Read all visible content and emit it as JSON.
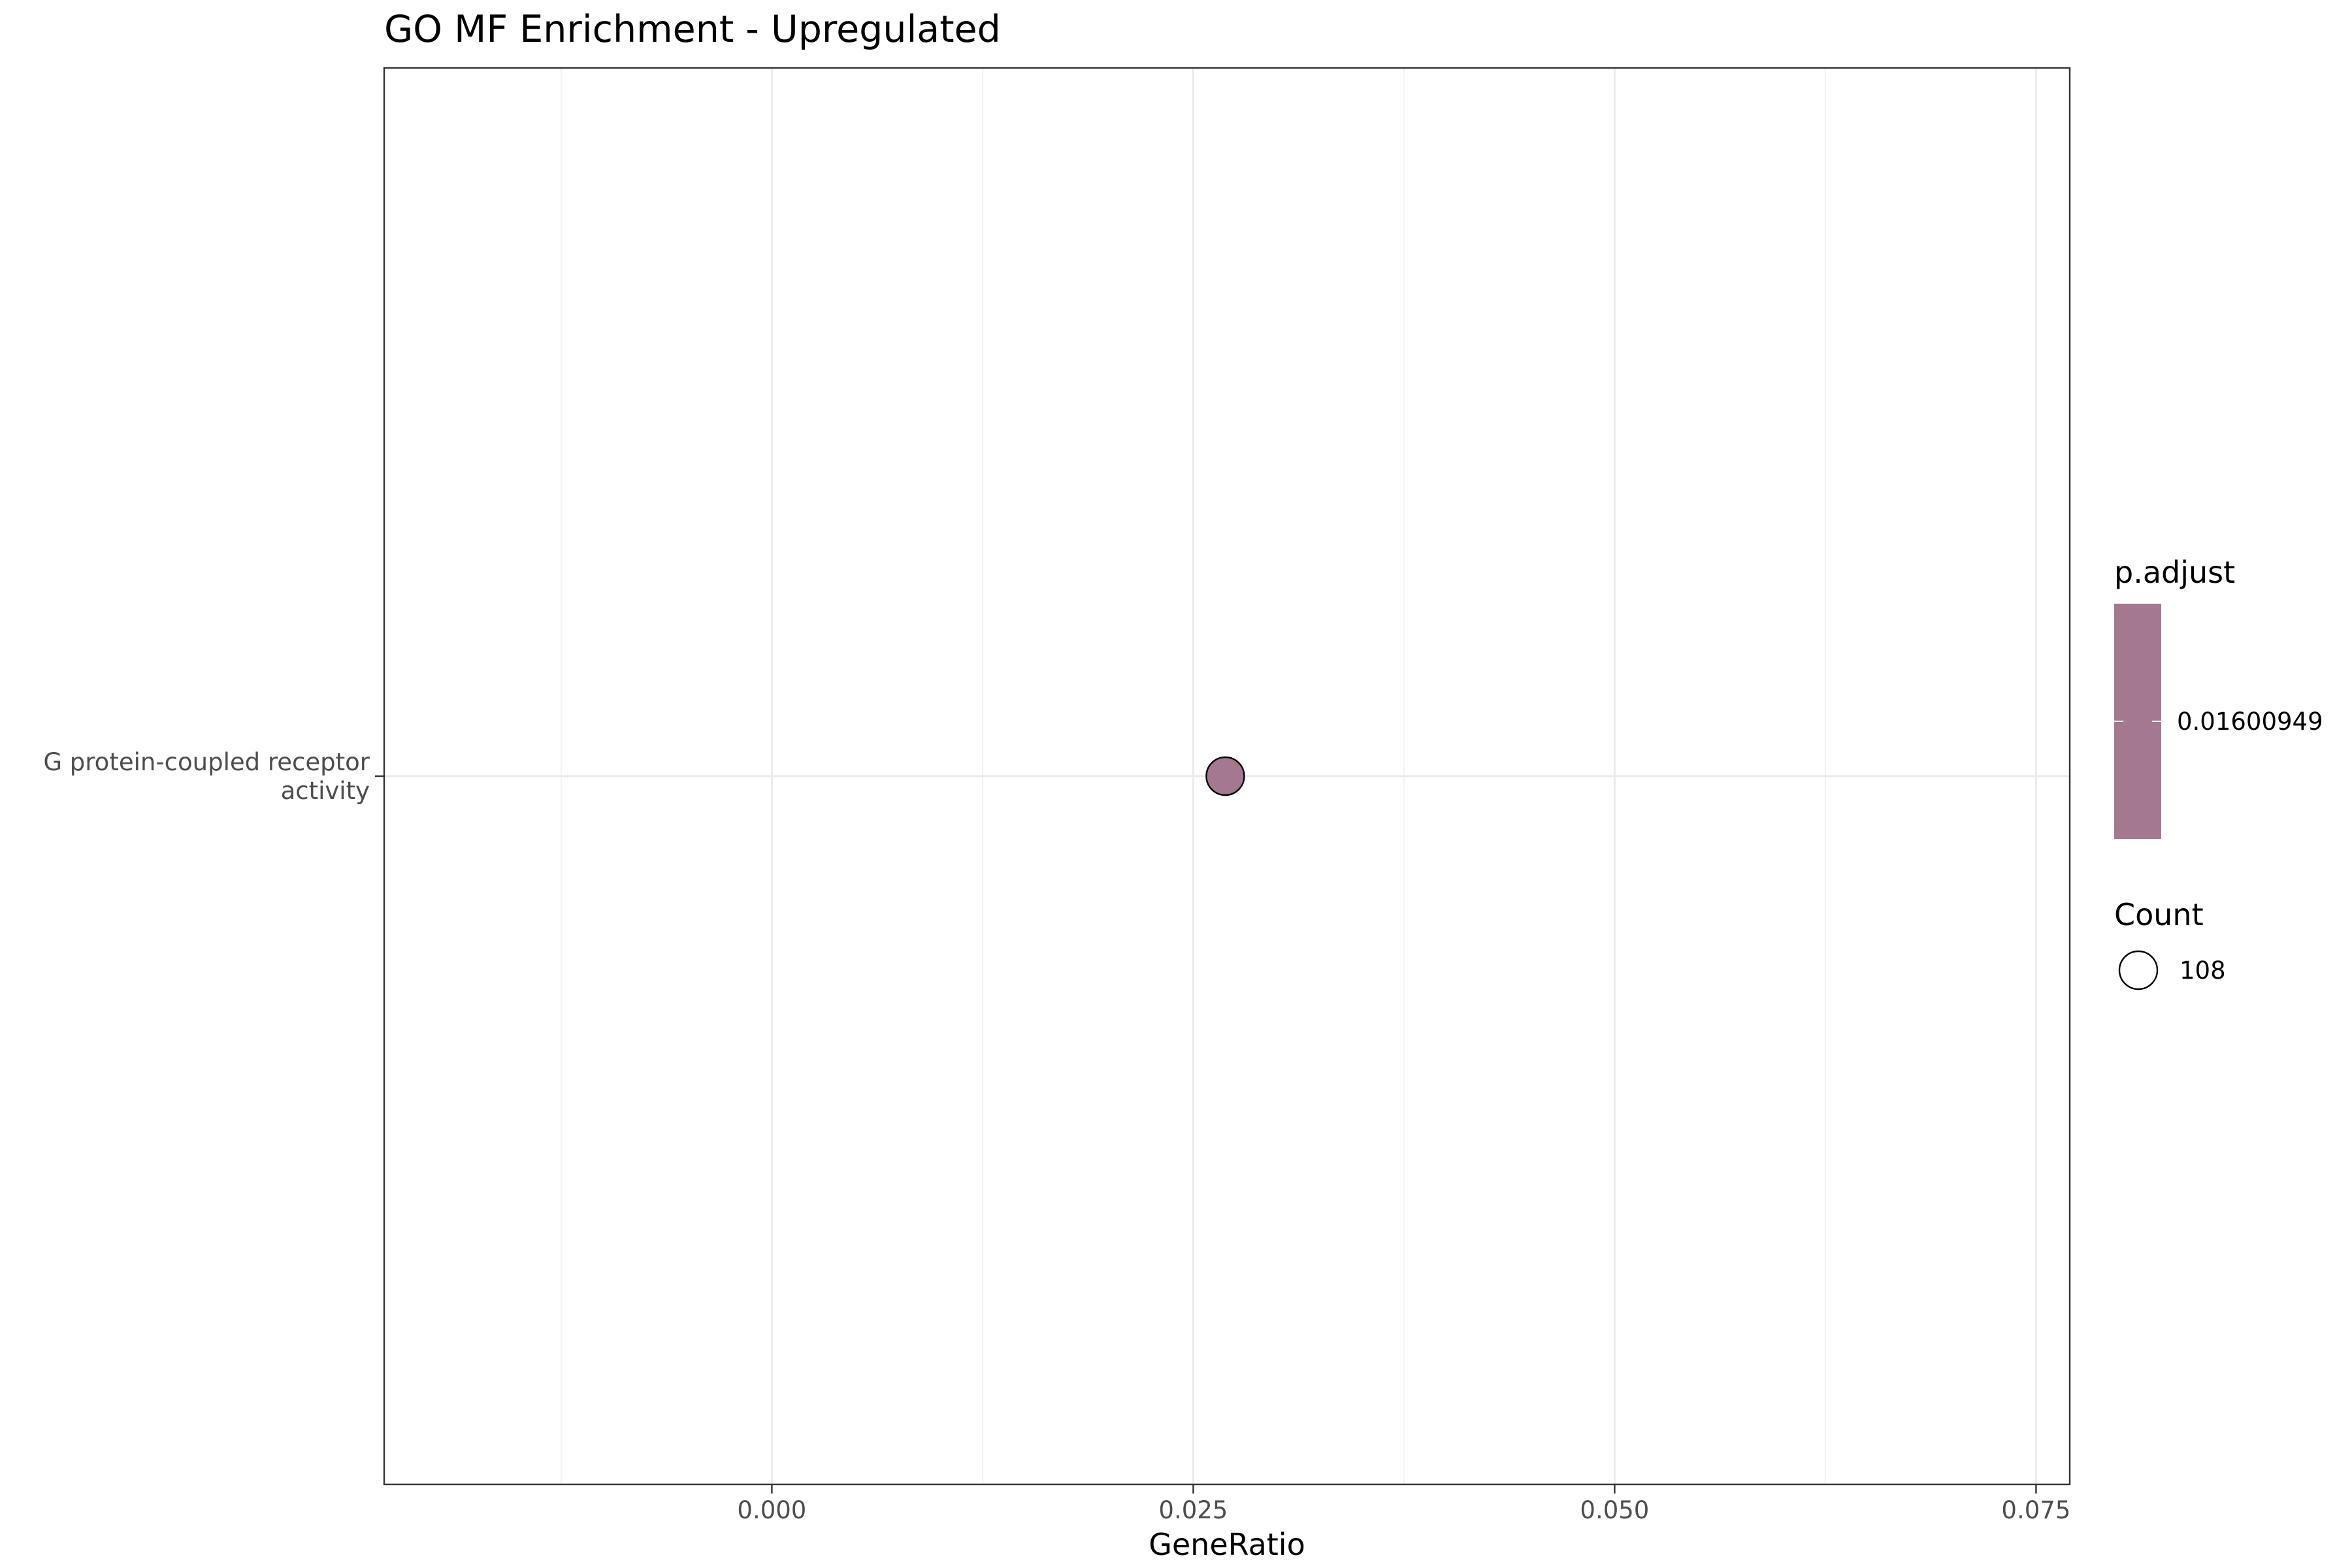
{
  "chart_data": {
    "type": "scatter",
    "title": "GO MF Enrichment - Upregulated",
    "xlabel": "GeneRatio",
    "ylabel": "",
    "xlim": [
      -0.023,
      0.077
    ],
    "x_ticks": [
      "0.000",
      "0.025",
      "0.050",
      "0.075"
    ],
    "x_tick_values": [
      0.0,
      0.025,
      0.05,
      0.075
    ],
    "x_minor_values": [
      -0.0125,
      0.0125,
      0.0375,
      0.0625
    ],
    "categories": [
      "G protein-coupled receptor activity"
    ],
    "category_lines": [
      [
        "G protein-coupled receptor",
        "activity"
      ]
    ],
    "points": [
      {
        "term": "G protein-coupled receptor activity",
        "gene_ratio": 0.0269,
        "count": 108,
        "p_adjust": 0.01600949,
        "color": "#a4788e"
      }
    ],
    "grid": true,
    "legend": {
      "placement": "right",
      "color": {
        "title": "p.adjust",
        "label": "0.01600949",
        "fill": "#a4788e"
      },
      "size": {
        "title": "Count",
        "label": "108"
      }
    }
  }
}
